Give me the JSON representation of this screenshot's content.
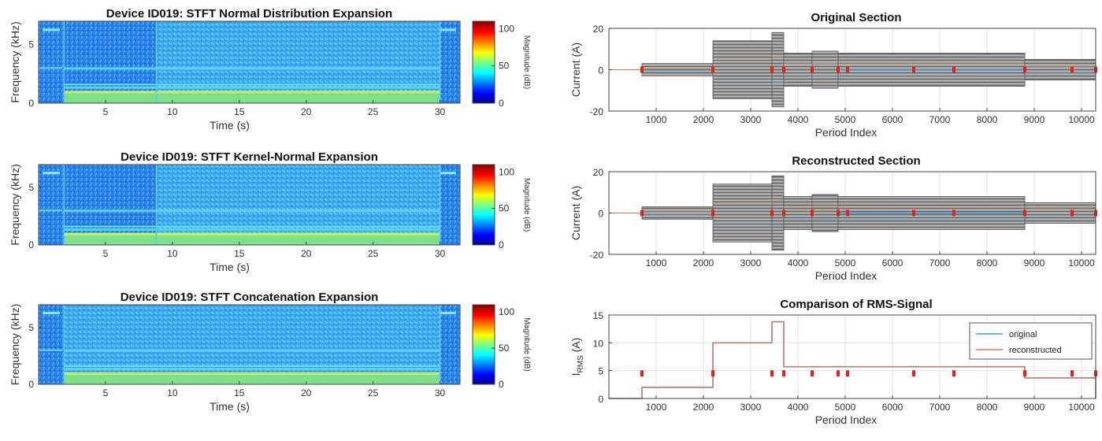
{
  "chart_data": [
    {
      "type": "heatmap",
      "title": "Device ID019: STFT  Normal Distribution Expansion",
      "xlabel": "Time (s)",
      "ylabel": "Frequency (kHz)",
      "xlim": [
        0,
        31.5
      ],
      "ylim": [
        0,
        7
      ],
      "xticks": [
        5,
        10,
        15,
        20,
        25,
        30
      ],
      "yticks": [
        0,
        5
      ],
      "colorbar": {
        "label": "Magnitude (dB)",
        "ticks": [
          0,
          50,
          100
        ],
        "range": [
          0,
          110
        ]
      },
      "bands_khz": [
        0.6,
        1.3,
        1.6,
        3.0,
        6.3
      ],
      "segment_edges_s": [
        1.9,
        8.8,
        30.0
      ]
    },
    {
      "type": "heatmap",
      "title": "Device ID019: STFT  Kernel-Normal Expansion",
      "xlabel": "Time (s)",
      "ylabel": "Frequency (kHz)",
      "xlim": [
        0,
        31.5
      ],
      "ylim": [
        0,
        7
      ],
      "xticks": [
        5,
        10,
        15,
        20,
        25,
        30
      ],
      "yticks": [
        0,
        5
      ],
      "colorbar": {
        "label": "Magnitude (dB)",
        "ticks": [
          0,
          50,
          100
        ],
        "range": [
          0,
          110
        ]
      },
      "bands_khz": [
        0.6,
        1.3,
        1.6,
        3.0,
        6.3
      ],
      "segment_edges_s": [
        1.9,
        8.8,
        30.0
      ]
    },
    {
      "type": "heatmap",
      "title": "Device ID019: STFT  Concatenation Expansion",
      "xlabel": "Time (s)",
      "ylabel": "Frequency (kHz)",
      "xlim": [
        0,
        31.5
      ],
      "ylim": [
        0,
        7
      ],
      "xticks": [
        5,
        10,
        15,
        20,
        25,
        30
      ],
      "yticks": [
        0,
        5
      ],
      "colorbar": {
        "label": "Magnitude (dB)",
        "ticks": [
          0,
          50,
          100
        ],
        "range": [
          0,
          110
        ]
      },
      "bands_khz": [
        0.6,
        1.3,
        1.6,
        3.0,
        6.3
      ],
      "segment_edges_s": [
        1.9,
        30.0
      ]
    },
    {
      "type": "area",
      "title": "Original Section",
      "xlabel": "Period Index",
      "ylabel": "Current (A)",
      "xlim": [
        0,
        10300
      ],
      "ylim": [
        -20,
        20
      ],
      "xticks": [
        1000,
        2000,
        3000,
        4000,
        5000,
        6000,
        7000,
        8000,
        9000,
        10000
      ],
      "yticks": [
        -20,
        0,
        20
      ],
      "envelope": [
        {
          "x0": 700,
          "x1": 2200,
          "amp": 3
        },
        {
          "x0": 2200,
          "x1": 3450,
          "amp": 14
        },
        {
          "x0": 3450,
          "x1": 3700,
          "amp": 18
        },
        {
          "x0": 3700,
          "x1": 4300,
          "amp": 8
        },
        {
          "x0": 4300,
          "x1": 4850,
          "amp": 9
        },
        {
          "x0": 4850,
          "x1": 8800,
          "amp": 8
        },
        {
          "x0": 8800,
          "x1": 10300,
          "amp": 5
        }
      ],
      "markers_x": [
        700,
        2200,
        3450,
        3700,
        4300,
        4850,
        5050,
        6450,
        7300,
        8800,
        9800,
        10300
      ]
    },
    {
      "type": "area",
      "title": "Reconstructed Section",
      "xlabel": "Period Index",
      "ylabel": "Current (A)",
      "xlim": [
        0,
        10300
      ],
      "ylim": [
        -20,
        20
      ],
      "xticks": [
        1000,
        2000,
        3000,
        4000,
        5000,
        6000,
        7000,
        8000,
        9000,
        10000
      ],
      "yticks": [
        -20,
        0,
        20
      ],
      "envelope": [
        {
          "x0": 700,
          "x1": 2200,
          "amp": 3
        },
        {
          "x0": 2200,
          "x1": 3450,
          "amp": 14
        },
        {
          "x0": 3450,
          "x1": 3700,
          "amp": 18
        },
        {
          "x0": 3700,
          "x1": 4300,
          "amp": 8
        },
        {
          "x0": 4300,
          "x1": 4850,
          "amp": 9
        },
        {
          "x0": 4850,
          "x1": 8800,
          "amp": 8
        },
        {
          "x0": 8800,
          "x1": 10300,
          "amp": 5
        }
      ],
      "markers_x": [
        700,
        2200,
        3450,
        3700,
        4300,
        4850,
        5050,
        6450,
        7300,
        8800,
        9800,
        10300
      ]
    },
    {
      "type": "line",
      "title": "Comparison of RMS-Signal",
      "xlabel": "Period Index",
      "ylabel_main": "I",
      "ylabel_sub": "RMS",
      "ylabel_unit": " (A)",
      "xlim": [
        0,
        10300
      ],
      "ylim": [
        0,
        15
      ],
      "xticks": [
        1000,
        2000,
        3000,
        4000,
        5000,
        6000,
        7000,
        8000,
        9000,
        10000
      ],
      "yticks": [
        0,
        5,
        10,
        15
      ],
      "legend_position": "top-right",
      "series": [
        {
          "name": "original",
          "color": "#3a9ad9",
          "x": [
            0,
            700,
            700,
            2200,
            2200,
            3450,
            3450,
            3700,
            3700,
            8800,
            8800,
            10300,
            10300
          ],
          "y": [
            0,
            0,
            2,
            2,
            10,
            10,
            13.8,
            13.8,
            5.7,
            5.7,
            3.7,
            3.7,
            0
          ]
        },
        {
          "name": "reconstructed",
          "color": "#e8734a",
          "x": [
            0,
            700,
            700,
            2200,
            2200,
            3450,
            3450,
            3700,
            3700,
            8800,
            8800,
            10300,
            10300
          ],
          "y": [
            0,
            0,
            2,
            2,
            10,
            10,
            13.8,
            13.8,
            5.7,
            5.7,
            3.7,
            3.7,
            0
          ]
        }
      ],
      "markers": {
        "y": 4.5,
        "x": [
          700,
          2200,
          3450,
          3700,
          4300,
          4850,
          5050,
          6450,
          7300,
          8800,
          9800,
          10300
        ]
      }
    }
  ]
}
